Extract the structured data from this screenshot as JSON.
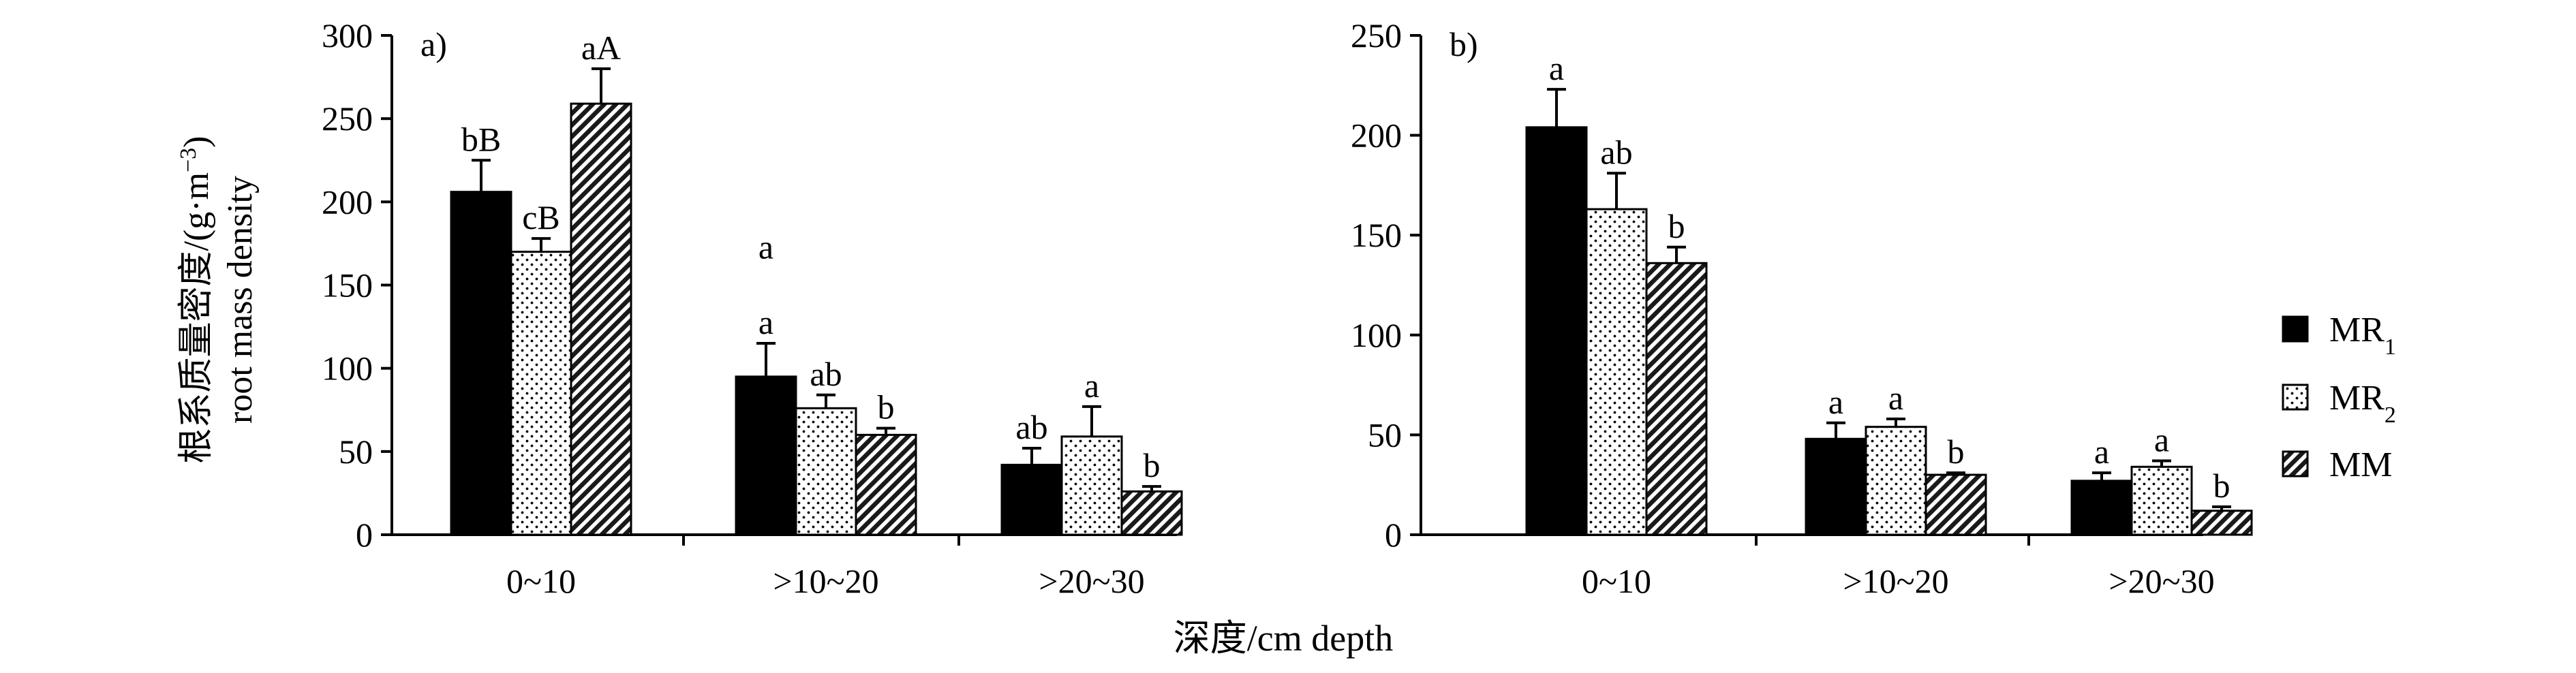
{
  "figure": {
    "ylabel_cn": "根系质量密度/(g·m",
    "ylabel_sup": "−3",
    "ylabel_close": ")",
    "ylabel_en": "root mass density",
    "xlabel": "深度/cm depth"
  },
  "legend": [
    {
      "name": "MR",
      "sub": "1",
      "pattern": "solid"
    },
    {
      "name": "MR",
      "sub": "2",
      "pattern": "dots"
    },
    {
      "name": "MM",
      "sub": "",
      "pattern": "hatch"
    }
  ],
  "chart_data": [
    {
      "type": "bar",
      "panel_label": "a)",
      "categories": [
        "0~10",
        ">10~20",
        ">20~30"
      ],
      "ylim": [
        0,
        300
      ],
      "yticks": [
        0,
        50,
        100,
        150,
        200,
        250,
        300
      ],
      "series": [
        {
          "name": "MR1",
          "values": [
            206,
            95,
            42
          ],
          "errors": [
            19,
            20,
            10
          ],
          "labels": [
            "bB",
            "a",
            "ab"
          ]
        },
        {
          "name": "MR2",
          "values": [
            170,
            76,
            59
          ],
          "errors": [
            8,
            8,
            18
          ],
          "labels": [
            "cB",
            "ab",
            "a"
          ]
        },
        {
          "name": "MM",
          "values": [
            259,
            60,
            26
          ],
          "errors": [
            21,
            4,
            3
          ],
          "labels": [
            "aA",
            "b",
            "b"
          ]
        }
      ],
      "annotations": [
        {
          "text": "a",
          "category": ">10~20",
          "y": 166
        }
      ]
    },
    {
      "type": "bar",
      "panel_label": "b)",
      "categories": [
        "0~10",
        ">10~20",
        ">20~30"
      ],
      "ylim": [
        0,
        250
      ],
      "yticks": [
        0,
        50,
        100,
        150,
        200,
        250
      ],
      "series": [
        {
          "name": "MR1",
          "values": [
            204,
            48,
            27
          ],
          "errors": [
            19,
            8,
            4
          ],
          "labels": [
            "a",
            "a",
            "a"
          ]
        },
        {
          "name": "MR2",
          "values": [
            163,
            54,
            34
          ],
          "errors": [
            18,
            4,
            3
          ],
          "labels": [
            "ab",
            "a",
            "a"
          ]
        },
        {
          "name": "MM",
          "values": [
            136,
            30,
            12
          ],
          "errors": [
            8,
            1,
            2
          ],
          "labels": [
            "b",
            "b",
            "b"
          ]
        }
      ]
    }
  ]
}
